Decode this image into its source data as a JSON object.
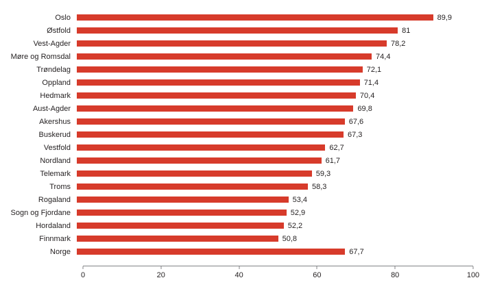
{
  "chart_data": {
    "type": "bar",
    "orientation": "horizontal",
    "title": "",
    "xlabel": "",
    "ylabel": "",
    "grid": false,
    "legend": false,
    "xlim": [
      0,
      100
    ],
    "x_ticks": [
      0,
      20,
      40,
      60,
      80,
      100
    ],
    "x_tick_labels": [
      "0",
      "20",
      "40",
      "60",
      "80",
      "100"
    ],
    "bar_color": "#d73b2b",
    "axis_color": "#808285",
    "text_color": "#231f20",
    "categories": [
      "Oslo",
      "Østfold",
      "Vest-Agder",
      "Møre og Romsdal",
      "Trøndelag",
      "Oppland",
      "Hedmark",
      "Aust-Agder",
      "Akershus",
      "Buskerud",
      "Vestfold",
      "Nordland",
      "Telemark",
      "Troms",
      "Rogaland",
      "Sogn og Fjordane",
      "Hordaland",
      "Finnmark",
      "Norge"
    ],
    "values": [
      89.9,
      81,
      78.2,
      74.4,
      72.1,
      71.4,
      70.4,
      69.8,
      67.6,
      67.3,
      62.7,
      61.7,
      59.3,
      58.3,
      53.4,
      52.9,
      52.2,
      50.8,
      67.7
    ],
    "value_labels": [
      "89,9",
      "81",
      "78,2",
      "74,4",
      "72,1",
      "71,4",
      "70,4",
      "69,8",
      "67,6",
      "67,3",
      "62,7",
      "61,7",
      "59,3",
      "58,3",
      "53,4",
      "52,9",
      "52,2",
      "50,8",
      "67,7"
    ]
  }
}
